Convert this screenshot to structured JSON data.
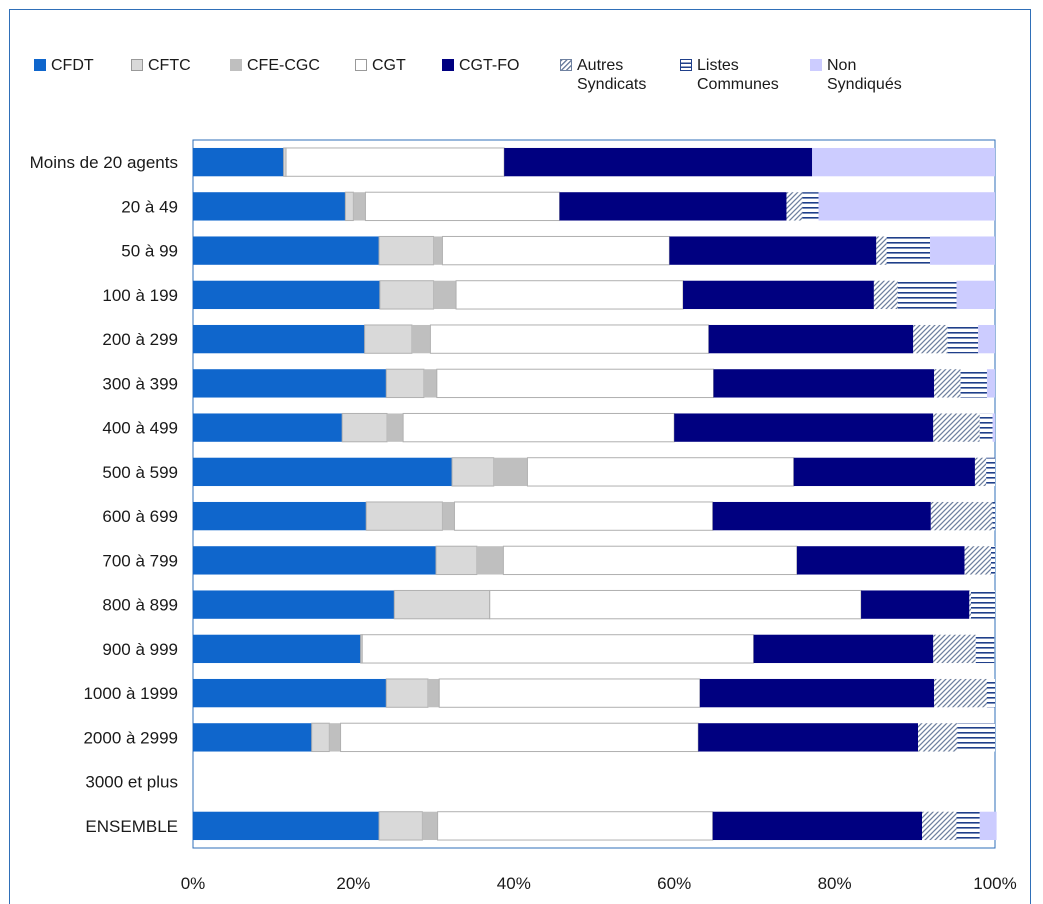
{
  "chart_data": {
    "type": "bar",
    "orientation": "horizontal",
    "stacked": true,
    "normalized_percent": true,
    "categories": [
      "Moins de 20 agents",
      "20 à 49",
      "50 à 99",
      "100 à 199",
      "200 à 299",
      "300 à 399",
      "400 à 499",
      "500 à 599",
      "600 à 699",
      "700 à 799",
      "800 à 899",
      "900 à 999",
      "1000 à 1999",
      "2000 à 2999",
      "3000 et plus",
      "ENSEMBLE"
    ],
    "series": [
      {
        "name": "CFDT",
        "color": "#0f66cc",
        "pattern": "solid",
        "values": [
          11.3,
          19.0,
          23.2,
          23.3,
          21.4,
          24.1,
          18.6,
          32.3,
          21.6,
          30.3,
          25.1,
          20.9,
          24.1,
          14.8,
          0,
          23.2
        ]
      },
      {
        "name": "CFTC",
        "color": "#d9d9d9",
        "pattern": "solid",
        "values": [
          0.3,
          1.0,
          6.8,
          6.7,
          5.9,
          4.7,
          5.6,
          5.2,
          9.5,
          5.1,
          11.9,
          0.2,
          5.2,
          2.2,
          0,
          5.4
        ]
      },
      {
        "name": "CFE-CGC",
        "color": "#bfbfbf",
        "pattern": "solid",
        "values": [
          0,
          1.5,
          1.1,
          2.8,
          2.3,
          1.6,
          2.0,
          4.2,
          1.5,
          3.3,
          0,
          0,
          1.4,
          1.4,
          0,
          1.9
        ]
      },
      {
        "name": "CGT",
        "color": "#ffffff",
        "pattern": "solid",
        "values": [
          27.2,
          24.2,
          28.3,
          28.3,
          34.7,
          34.5,
          33.8,
          33.2,
          32.2,
          36.6,
          46.3,
          48.8,
          32.5,
          44.6,
          0,
          34.3
        ]
      },
      {
        "name": "CGT-FO",
        "color": "#000080",
        "pattern": "solid",
        "values": [
          38.4,
          28.3,
          25.8,
          23.8,
          25.5,
          27.5,
          32.3,
          22.6,
          27.2,
          20.9,
          13.5,
          22.4,
          29.2,
          27.4,
          0,
          26.1
        ]
      },
      {
        "name": "Autres\nSyndicats",
        "color": "#7f8fa6",
        "pattern": "diagonal",
        "values": [
          0,
          2.0,
          1.3,
          3.0,
          4.3,
          3.3,
          5.8,
          1.4,
          7.7,
          3.3,
          0.2,
          5.3,
          6.6,
          4.9,
          0,
          4.3
        ]
      },
      {
        "name": "Listes\nCommunes",
        "color": "#1f3f8a",
        "pattern": "horizontal",
        "values": [
          0,
          2.0,
          5.4,
          7.3,
          3.8,
          3.3,
          1.6,
          1.1,
          0.3,
          0.5,
          3.0,
          2.3,
          1.0,
          4.7,
          0,
          2.9
        ]
      },
      {
        "name": "Non\nSyndiqués",
        "color": "#ccccff",
        "pattern": "solid",
        "values": [
          22.8,
          22.0,
          8.1,
          4.8,
          2.1,
          1.0,
          0.3,
          0,
          0,
          0,
          0,
          0,
          0,
          0,
          0,
          2.1
        ]
      }
    ],
    "xlim": [
      0,
      100
    ],
    "xticks": [
      "0%",
      "20%",
      "40%",
      "60%",
      "80%",
      "100%"
    ],
    "legend_position": "top",
    "grid": false,
    "title": "",
    "xlabel": "",
    "ylabel": ""
  }
}
